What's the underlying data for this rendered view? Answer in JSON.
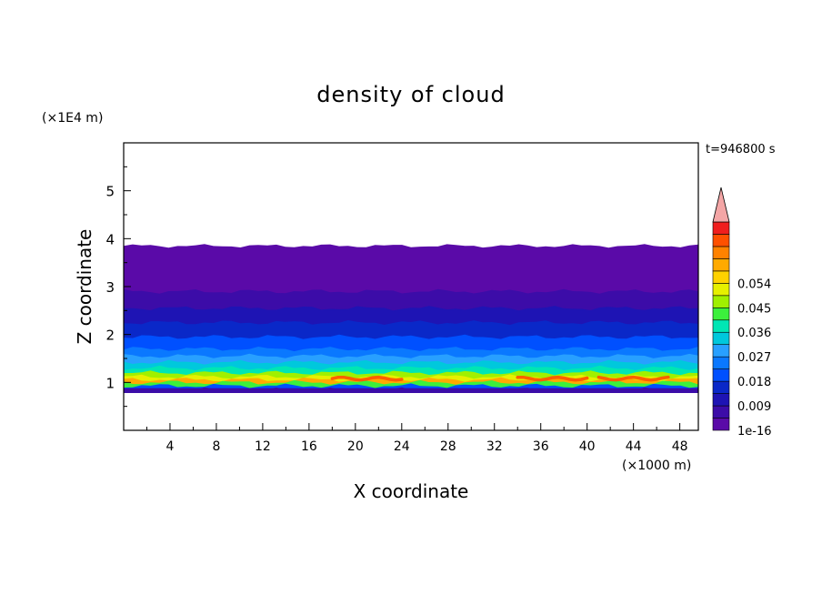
{
  "chart_data": {
    "type": "heatmap",
    "title": "density of cloud",
    "xlabel": "X coordinate",
    "ylabel": "Z coordinate",
    "x_unit": "(×1000 m)",
    "y_unit": "(×1E4 m)",
    "time_label": "t=946800 s",
    "xlim": [
      0,
      49.6
    ],
    "ylim": [
      0,
      6
    ],
    "x_ticks": [
      "4",
      "8",
      "12",
      "16",
      "20",
      "24",
      "28",
      "32",
      "36",
      "40",
      "44",
      "48"
    ],
    "y_ticks": [
      "1",
      "2",
      "3",
      "4",
      "5"
    ],
    "grid": false,
    "colorbar": {
      "position": "right",
      "extend": "max",
      "extend_color": "#f4a6a6",
      "labels": [
        "1e-16",
        "0.009",
        "0.018",
        "0.027",
        "0.036",
        "0.045",
        "0.054"
      ],
      "colors": [
        "#5a0aa8",
        "#3c0ca8",
        "#1e14b4",
        "#0a28c8",
        "#0050ff",
        "#0a78ff",
        "#28a0ff",
        "#00c8dc",
        "#00e6b4",
        "#3cf03c",
        "#a0f000",
        "#e6f000",
        "#ffd200",
        "#ffaa00",
        "#ff8200",
        "#ff5000",
        "#f01e1e"
      ]
    },
    "profile": [
      {
        "z": 3.85,
        "level": 0
      },
      {
        "z": 2.9,
        "level": 1
      },
      {
        "z": 2.55,
        "level": 2
      },
      {
        "z": 2.25,
        "level": 3
      },
      {
        "z": 1.95,
        "level": 4
      },
      {
        "z": 1.7,
        "level": 5
      },
      {
        "z": 1.55,
        "level": 6
      },
      {
        "z": 1.42,
        "level": 7
      },
      {
        "z": 1.3,
        "level": 8
      },
      {
        "z": 1.2,
        "level": 10
      },
      {
        "z": 1.12,
        "level": 11
      },
      {
        "z": 1.06,
        "level": 13
      },
      {
        "z": 1.0,
        "level": 9
      },
      {
        "z": 0.93,
        "level": 4
      },
      {
        "z": 0.85,
        "level": 1
      }
    ],
    "max_band": {
      "z": 1.08,
      "level": 15
    },
    "base_z": 0.78
  }
}
